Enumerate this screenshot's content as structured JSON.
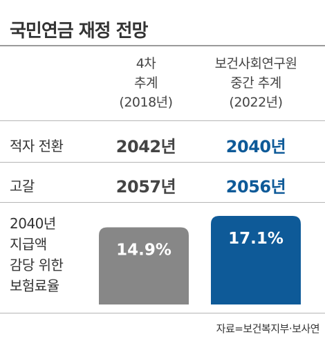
{
  "title": "국민연금 재정 전망",
  "columns": [
    {
      "lines": [
        "4차",
        "추계",
        "(2018년)"
      ]
    },
    {
      "lines": [
        "보건사회연구원",
        "중간 추계",
        "(2022년)"
      ]
    }
  ],
  "rows": [
    {
      "label": "적자 전환",
      "values": [
        "2042년",
        "2040년"
      ]
    },
    {
      "label": "고갈",
      "values": [
        "2057년",
        "2056년"
      ]
    }
  ],
  "ratio_label_lines": [
    "2040년",
    "지급액",
    "감당 위한",
    "보험료율"
  ],
  "source": "자료=보건복지부·보사연",
  "colors": {
    "bar_old": "#878787",
    "bar_new": "#0e5a98",
    "highlight_text": "#0e5a98"
  },
  "chart_data": {
    "type": "bar",
    "categories": [
      "4차 추계 (2018년)",
      "보건사회연구원 중간 추계 (2022년)"
    ],
    "values": [
      14.9,
      17.1
    ],
    "value_labels": [
      "14.9%",
      "17.1%"
    ],
    "ylabel": "2040년 지급액 감당 위한 보험료율",
    "ylim": [
      0,
      17.1
    ]
  }
}
